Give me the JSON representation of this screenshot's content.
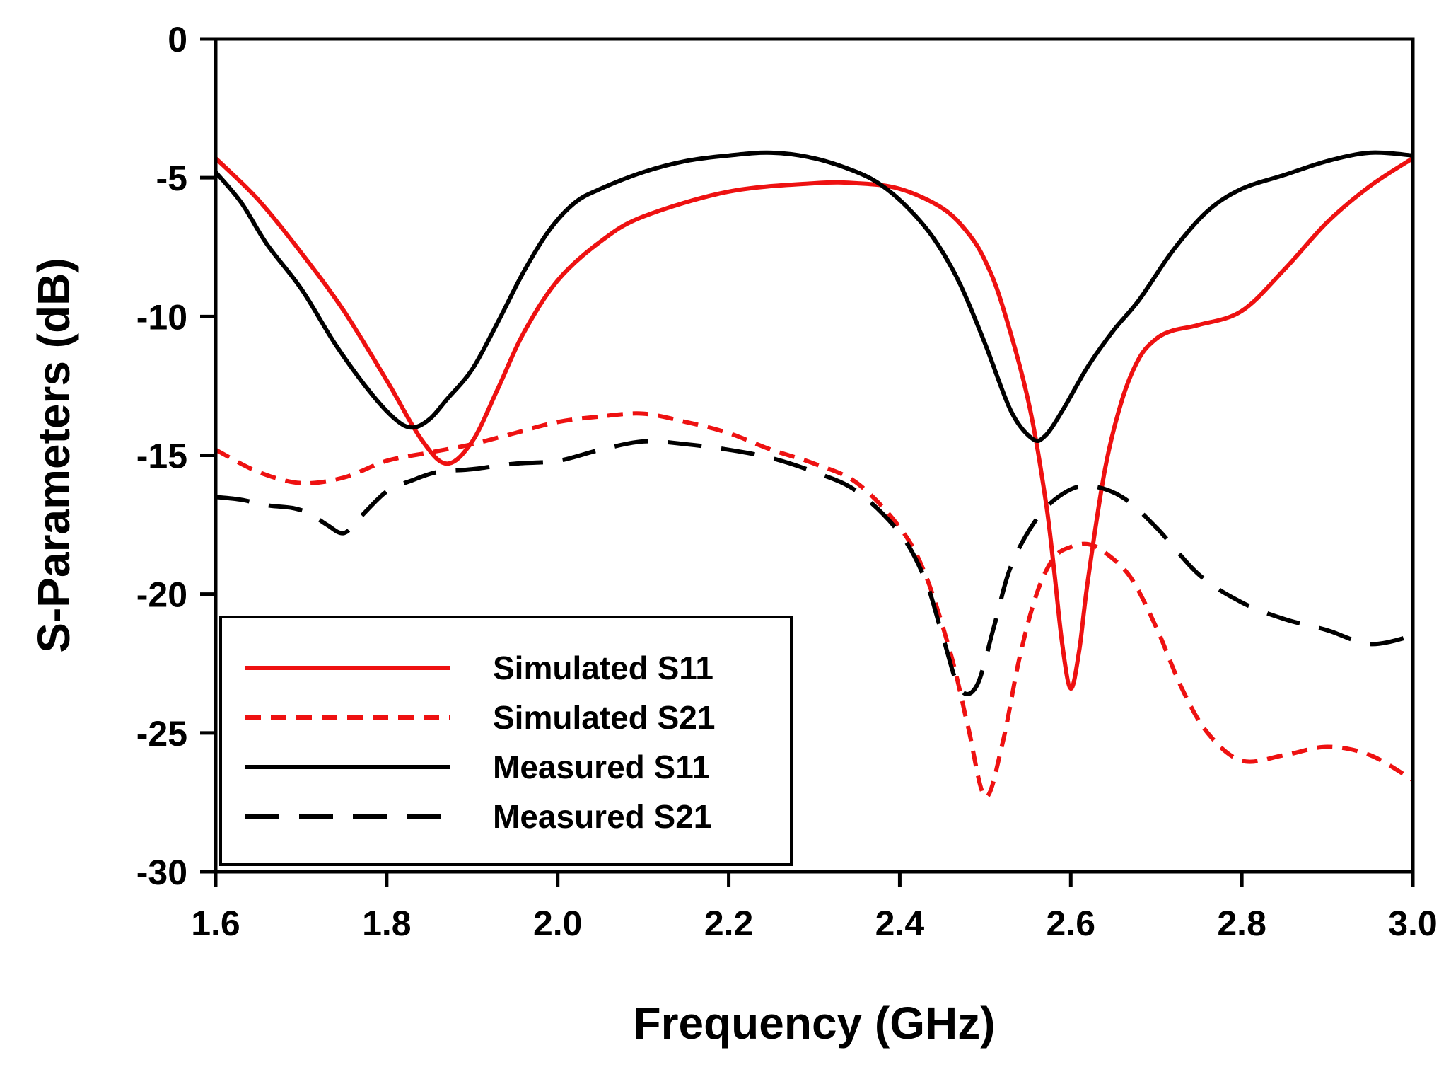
{
  "chart_data": {
    "type": "line",
    "title": "",
    "xlabel": "Frequency (GHz)",
    "ylabel": "S-Parameters (dB)",
    "xlim": [
      1.6,
      3.0
    ],
    "ylim": [
      -30,
      0
    ],
    "xticks": [
      1.6,
      1.8,
      2.0,
      2.2,
      2.4,
      2.6,
      2.8,
      3.0
    ],
    "xtick_labels": [
      "1.6",
      "1.8",
      "2.0",
      "2.2",
      "2.4",
      "2.6",
      "2.8",
      "3.0"
    ],
    "yticks": [
      0,
      -5,
      -10,
      -15,
      -20,
      -25,
      -30
    ],
    "ytick_labels": [
      "0",
      "-5",
      "-10",
      "-15",
      "-20",
      "-25",
      "-30"
    ],
    "grid": false,
    "legend_position": "lower-left",
    "series": [
      {
        "name": "Simulated S11",
        "color": "#ee1111",
        "dash": "solid",
        "x": [
          1.6,
          1.65,
          1.7,
          1.75,
          1.8,
          1.84,
          1.87,
          1.9,
          1.93,
          1.96,
          2.0,
          2.05,
          2.1,
          2.2,
          2.3,
          2.35,
          2.4,
          2.45,
          2.48,
          2.5,
          2.52,
          2.55,
          2.57,
          2.58,
          2.59,
          2.6,
          2.61,
          2.62,
          2.64,
          2.66,
          2.68,
          2.7,
          2.72,
          2.75,
          2.8,
          2.85,
          2.9,
          2.95,
          3.0
        ],
        "y": [
          -4.3,
          -5.8,
          -7.7,
          -9.8,
          -12.3,
          -14.4,
          -15.3,
          -14.5,
          -12.6,
          -10.6,
          -8.7,
          -7.3,
          -6.4,
          -5.5,
          -5.2,
          -5.2,
          -5.4,
          -6.1,
          -7.0,
          -8.0,
          -9.6,
          -13.0,
          -16.5,
          -19.0,
          -21.8,
          -23.4,
          -22.0,
          -19.5,
          -15.5,
          -13.0,
          -11.5,
          -10.8,
          -10.5,
          -10.3,
          -9.8,
          -8.3,
          -6.6,
          -5.3,
          -4.3
        ]
      },
      {
        "name": "Simulated S21",
        "color": "#ee1111",
        "dash": "short",
        "x": [
          1.6,
          1.65,
          1.7,
          1.75,
          1.8,
          1.85,
          1.9,
          1.95,
          2.0,
          2.05,
          2.1,
          2.15,
          2.2,
          2.25,
          2.3,
          2.35,
          2.4,
          2.43,
          2.46,
          2.48,
          2.5,
          2.52,
          2.54,
          2.56,
          2.58,
          2.6,
          2.62,
          2.64,
          2.67,
          2.7,
          2.73,
          2.76,
          2.8,
          2.85,
          2.9,
          2.95,
          3.0
        ],
        "y": [
          -14.8,
          -15.6,
          -16.0,
          -15.8,
          -15.2,
          -14.9,
          -14.6,
          -14.2,
          -13.8,
          -13.6,
          -13.5,
          -13.8,
          -14.2,
          -14.8,
          -15.3,
          -16.0,
          -17.6,
          -19.3,
          -22.2,
          -24.8,
          -27.3,
          -25.4,
          -22.3,
          -20.0,
          -18.7,
          -18.3,
          -18.2,
          -18.5,
          -19.4,
          -21.2,
          -23.4,
          -25.0,
          -26.0,
          -25.8,
          -25.5,
          -25.8,
          -26.7
        ]
      },
      {
        "name": "Measured S11",
        "color": "#000000",
        "dash": "solid",
        "x": [
          1.6,
          1.63,
          1.66,
          1.7,
          1.74,
          1.78,
          1.81,
          1.83,
          1.85,
          1.87,
          1.9,
          1.93,
          1.96,
          1.99,
          2.02,
          2.05,
          2.1,
          2.15,
          2.2,
          2.25,
          2.3,
          2.35,
          2.38,
          2.41,
          2.44,
          2.47,
          2.5,
          2.53,
          2.555,
          2.57,
          2.59,
          2.62,
          2.65,
          2.68,
          2.72,
          2.76,
          2.8,
          2.85,
          2.9,
          2.95,
          3.0
        ],
        "y": [
          -4.8,
          -5.9,
          -7.4,
          -9.0,
          -11.0,
          -12.7,
          -13.7,
          -14.0,
          -13.7,
          -13.0,
          -11.9,
          -10.2,
          -8.4,
          -6.9,
          -5.9,
          -5.4,
          -4.8,
          -4.4,
          -4.2,
          -4.1,
          -4.3,
          -4.8,
          -5.3,
          -6.1,
          -7.2,
          -8.8,
          -11.0,
          -13.4,
          -14.4,
          -14.3,
          -13.4,
          -11.8,
          -10.5,
          -9.4,
          -7.6,
          -6.2,
          -5.4,
          -4.9,
          -4.4,
          -4.1,
          -4.2
        ]
      },
      {
        "name": "Measured S21",
        "color": "#000000",
        "dash": "long",
        "x": [
          1.6,
          1.63,
          1.66,
          1.69,
          1.71,
          1.73,
          1.75,
          1.77,
          1.8,
          1.83,
          1.86,
          1.9,
          1.95,
          2.0,
          2.05,
          2.1,
          2.15,
          2.2,
          2.25,
          2.3,
          2.35,
          2.4,
          2.43,
          2.45,
          2.47,
          2.49,
          2.51,
          2.53,
          2.56,
          2.59,
          2.62,
          2.66,
          2.7,
          2.75,
          2.8,
          2.85,
          2.9,
          2.95,
          3.0
        ],
        "y": [
          -16.5,
          -16.6,
          -16.8,
          -16.9,
          -17.1,
          -17.5,
          -17.8,
          -17.2,
          -16.3,
          -15.9,
          -15.6,
          -15.5,
          -15.3,
          -15.2,
          -14.8,
          -14.5,
          -14.6,
          -14.8,
          -15.1,
          -15.6,
          -16.3,
          -17.8,
          -19.5,
          -21.5,
          -23.4,
          -23.3,
          -21.2,
          -19.0,
          -17.3,
          -16.4,
          -16.1,
          -16.5,
          -17.6,
          -19.3,
          -20.3,
          -20.9,
          -21.3,
          -21.8,
          -21.5
        ]
      }
    ]
  }
}
